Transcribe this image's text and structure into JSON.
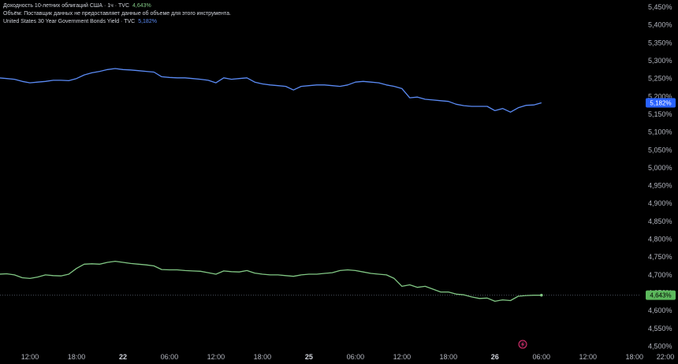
{
  "legend": {
    "series1_label": "Доходность 10-летних облигаций США · 1ч · TVC",
    "series1_value": "4,643%",
    "volume_note": "Объём: Поставщик данных не предоставляет данные об объеме для этого инструмента.",
    "series2_label": "United States 30 Year Government Bonds Yield · TVC",
    "series2_value": "5,182%"
  },
  "colors": {
    "background": "#000000",
    "series_blue": "#5b8bf5",
    "series_green": "#81c784",
    "badge_blue": "#2962ff",
    "badge_green": "#5cb85c",
    "axis_text": "#b2b5be"
  },
  "event_icon": "lightning-icon",
  "chart_data": {
    "type": "line",
    "y_axis": {
      "ylim": [
        4.49,
        5.47
      ],
      "ticks": [
        "5,450%",
        "5,400%",
        "5,350%",
        "5,300%",
        "5,250%",
        "5,200%",
        "5,150%",
        "5,100%",
        "5,050%",
        "5,000%",
        "4,950%",
        "4,900%",
        "4,850%",
        "4,800%",
        "4,750%",
        "4,700%",
        "4,650%",
        "4,600%",
        "4,550%",
        "4,500%"
      ],
      "tick_values": [
        5.45,
        5.4,
        5.35,
        5.3,
        5.25,
        5.2,
        5.15,
        5.1,
        5.05,
        5.0,
        4.95,
        4.9,
        4.85,
        4.8,
        4.75,
        4.7,
        4.65,
        4.6,
        4.55,
        4.5
      ]
    },
    "x_axis": {
      "xlim": [
        -2.2,
        70.3
      ],
      "labels": [
        {
          "text": "12:00",
          "hour": 0,
          "bold": false
        },
        {
          "text": "18:00",
          "hour": 6,
          "bold": false
        },
        {
          "text": "22",
          "hour": 12,
          "bold": true
        },
        {
          "text": "06:00",
          "hour": 18,
          "bold": false
        },
        {
          "text": "12:00",
          "hour": 24,
          "bold": false
        },
        {
          "text": "18:00",
          "hour": 30,
          "bold": false
        },
        {
          "text": "25",
          "hour": 36,
          "bold": true
        },
        {
          "text": "06:00",
          "hour": 42,
          "bold": false
        },
        {
          "text": "12:00",
          "hour": 48,
          "bold": false
        },
        {
          "text": "18:00",
          "hour": 54,
          "bold": false
        },
        {
          "text": "26",
          "hour": 60,
          "bold": true
        },
        {
          "text": "06:00",
          "hour": 66,
          "bold": false
        },
        {
          "text": "12:00",
          "hour": 72,
          "bold": false
        },
        {
          "text": "18:00",
          "hour": 78,
          "bold": false
        },
        {
          "text": "22:00",
          "hour": 82,
          "bold": false
        }
      ]
    },
    "series": [
      {
        "name": "United States 30 Year Government Bonds Yield",
        "color": "#5b8bf5",
        "last_value_label": "5,182%",
        "x": [
          -4,
          -3,
          -2,
          -1,
          0,
          1,
          2,
          3,
          4,
          5,
          6,
          7,
          8,
          9,
          10,
          11,
          12,
          13,
          14,
          15,
          16,
          17,
          18,
          19,
          20,
          21,
          22,
          23,
          24,
          25,
          26,
          27,
          28,
          29,
          30,
          31,
          32,
          33,
          34,
          35,
          36,
          37,
          38,
          39,
          40,
          41,
          42,
          43,
          44,
          45,
          46,
          47,
          48,
          49,
          50,
          51,
          52,
          53,
          54,
          55,
          56,
          57,
          58,
          59,
          60,
          61,
          62,
          63,
          64,
          65,
          66
        ],
        "values": [
          5.252,
          5.25,
          5.248,
          5.242,
          5.238,
          5.24,
          5.242,
          5.245,
          5.245,
          5.244,
          5.25,
          5.26,
          5.266,
          5.27,
          5.275,
          5.278,
          5.275,
          5.274,
          5.272,
          5.27,
          5.268,
          5.255,
          5.253,
          5.252,
          5.252,
          5.25,
          5.248,
          5.245,
          5.238,
          5.252,
          5.248,
          5.25,
          5.252,
          5.24,
          5.235,
          5.232,
          5.23,
          5.228,
          5.218,
          5.228,
          5.23,
          5.232,
          5.232,
          5.23,
          5.228,
          5.232,
          5.24,
          5.242,
          5.24,
          5.238,
          5.232,
          5.228,
          5.222,
          5.196,
          5.198,
          5.192,
          5.19,
          5.188,
          5.186,
          5.178,
          5.174,
          5.172,
          5.172,
          5.172,
          5.16,
          5.166,
          5.156,
          5.168,
          5.175,
          5.176,
          5.182
        ]
      },
      {
        "name": "Доходность 10-летних облигаций США",
        "color": "#81c784",
        "last_value_label": "4,643%",
        "x": [
          -4,
          -3,
          -2,
          -1,
          0,
          1,
          2,
          3,
          4,
          5,
          6,
          7,
          8,
          9,
          10,
          11,
          12,
          13,
          14,
          15,
          16,
          17,
          18,
          19,
          20,
          21,
          22,
          23,
          24,
          25,
          26,
          27,
          28,
          29,
          30,
          31,
          32,
          33,
          34,
          35,
          36,
          37,
          38,
          39,
          40,
          41,
          42,
          43,
          44,
          45,
          46,
          47,
          48,
          49,
          50,
          51,
          52,
          53,
          54,
          55,
          56,
          57,
          58,
          59,
          60,
          61,
          62,
          63,
          64,
          65,
          66
        ],
        "values": [
          4.702,
          4.703,
          4.7,
          4.692,
          4.69,
          4.694,
          4.7,
          4.698,
          4.697,
          4.702,
          4.718,
          4.73,
          4.731,
          4.73,
          4.735,
          4.738,
          4.735,
          4.732,
          4.73,
          4.728,
          4.725,
          4.715,
          4.714,
          4.714,
          4.712,
          4.711,
          4.71,
          4.706,
          4.702,
          4.711,
          4.709,
          4.708,
          4.712,
          4.705,
          4.702,
          4.7,
          4.7,
          4.698,
          4.696,
          4.7,
          4.702,
          4.702,
          4.704,
          4.706,
          4.712,
          4.714,
          4.712,
          4.708,
          4.704,
          4.702,
          4.7,
          4.69,
          4.668,
          4.672,
          4.665,
          4.668,
          4.66,
          4.652,
          4.652,
          4.646,
          4.644,
          4.638,
          4.634,
          4.635,
          4.626,
          4.63,
          4.628,
          4.64,
          4.642,
          4.643,
          4.643
        ]
      }
    ],
    "grid": false,
    "price_line_value": 4.643
  }
}
